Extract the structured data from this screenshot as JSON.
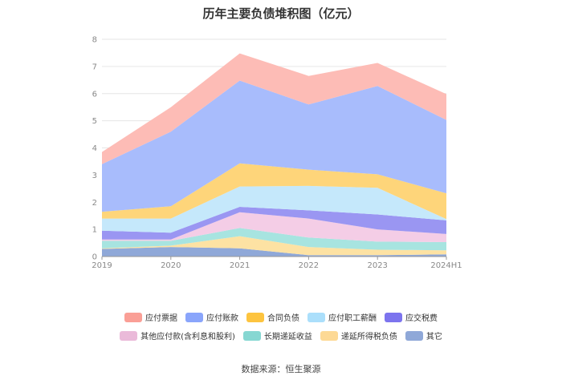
{
  "header": {
    "title": "历年主要负债堆积图（亿元）"
  },
  "footer": {
    "source": "数据来源：恒生聚源"
  },
  "chart_data": {
    "type": "area",
    "stacked": true,
    "title": "历年主要负债堆积图（亿元）",
    "xlabel": "",
    "ylabel": "",
    "ylim": [
      0,
      8
    ],
    "yticks": [
      "0",
      "1",
      "2",
      "3",
      "4",
      "5",
      "6",
      "7",
      "8"
    ],
    "grid": true,
    "legend_position": "bottom",
    "categories": [
      "2019",
      "2020",
      "2021",
      "2022",
      "2023",
      "2024H1"
    ],
    "series": [
      {
        "name": "其它",
        "color": "#8fa8d8",
        "values": [
          0.28,
          0.35,
          0.3,
          0.05,
          0.05,
          0.08
        ]
      },
      {
        "name": "递延所得税负债",
        "color": "#fde2a3",
        "values": [
          0.02,
          0.05,
          0.45,
          0.3,
          0.2,
          0.15
        ]
      },
      {
        "name": "长期递延收益",
        "color": "#a7e4e0",
        "values": [
          0.28,
          0.18,
          0.3,
          0.35,
          0.3,
          0.3
        ]
      },
      {
        "name": "其他应付款(含利息和股利)",
        "color": "#f4cde6",
        "values": [
          0.05,
          0.05,
          0.58,
          0.7,
          0.45,
          0.3
        ]
      },
      {
        "name": "应交税费",
        "color": "#9a96f2",
        "values": [
          0.32,
          0.25,
          0.2,
          0.3,
          0.55,
          0.5
        ]
      },
      {
        "name": "应付职工薪酬",
        "color": "#c5e8fb",
        "values": [
          0.45,
          0.52,
          0.75,
          0.9,
          0.98,
          0.05
        ]
      },
      {
        "name": "合同负债",
        "color": "#fed57a",
        "values": [
          0.25,
          0.45,
          0.85,
          0.6,
          0.5,
          0.95
        ]
      },
      {
        "name": "应付账款",
        "color": "#a8bcfc",
        "values": [
          1.75,
          2.75,
          3.05,
          2.4,
          3.25,
          2.7
        ]
      },
      {
        "name": "应付票据",
        "color": "#fdbcb6",
        "values": [
          0.45,
          0.9,
          1.0,
          1.05,
          0.85,
          0.95
        ]
      }
    ]
  },
  "legend_rows": [
    [
      {
        "label": "应付票据",
        "color": "#fa9f96"
      },
      {
        "label": "应付账款",
        "color": "#8aa5fb"
      },
      {
        "label": "合同负债",
        "color": "#fdc43f"
      },
      {
        "label": "应付职工薪酬",
        "color": "#abdffb"
      },
      {
        "label": "应交税费",
        "color": "#7c74ee"
      }
    ],
    [
      {
        "label": "其他应付款(含利息和股利)",
        "color": "#eabad9"
      },
      {
        "label": "长期递延收益",
        "color": "#86d7d2"
      },
      {
        "label": "递延所得税负债",
        "color": "#fdd995"
      },
      {
        "label": "其它",
        "color": "#8fa8d8"
      }
    ]
  ]
}
